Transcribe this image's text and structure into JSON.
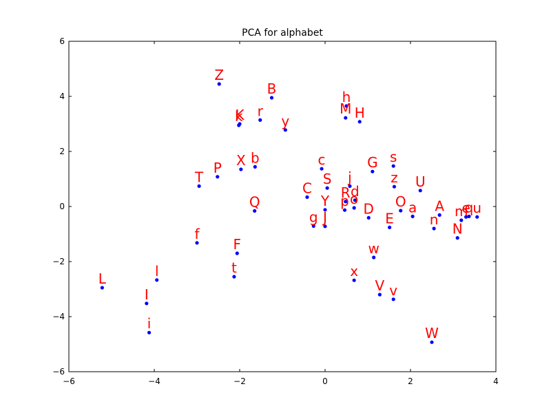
{
  "chart_data": {
    "type": "scatter",
    "title": "PCA for alphabet",
    "xlabel": "",
    "ylabel": "",
    "xlim": [
      -6,
      4
    ],
    "ylim": [
      -6,
      6
    ],
    "xticks": [
      -6,
      -4,
      -2,
      0,
      2,
      4
    ],
    "yticks": [
      -6,
      -4,
      -2,
      0,
      2,
      4,
      6
    ],
    "xtick_labels": [
      "−6",
      "−4",
      "−2",
      "0",
      "2",
      "4"
    ],
    "ytick_labels": [
      "−6",
      "−4",
      "−2",
      "0",
      "2",
      "4",
      "6"
    ],
    "grid": false,
    "point_color": "#0000ff",
    "label_color": "#ff0000",
    "points": [
      {
        "label": "Z",
        "x": -2.48,
        "y": 4.45
      },
      {
        "label": "B",
        "x": -1.25,
        "y": 3.95
      },
      {
        "label": "h",
        "x": 0.5,
        "y": 3.65
      },
      {
        "label": "M",
        "x": 0.48,
        "y": 3.22
      },
      {
        "label": "H",
        "x": 0.81,
        "y": 3.08
      },
      {
        "label": "r",
        "x": -1.52,
        "y": 3.14
      },
      {
        "label": "k",
        "x": -2.02,
        "y": 2.95
      },
      {
        "label": "K",
        "x": -2.0,
        "y": 3.0
      },
      {
        "label": "y",
        "x": -0.93,
        "y": 2.78
      },
      {
        "label": "c",
        "x": -0.08,
        "y": 1.37
      },
      {
        "label": "s",
        "x": 1.6,
        "y": 1.47
      },
      {
        "label": "G",
        "x": 1.11,
        "y": 1.27
      },
      {
        "label": "X",
        "x": -1.97,
        "y": 1.35
      },
      {
        "label": "b",
        "x": -1.64,
        "y": 1.44
      },
      {
        "label": "P",
        "x": -2.52,
        "y": 1.08
      },
      {
        "label": "T",
        "x": -2.95,
        "y": 0.74
      },
      {
        "label": "z",
        "x": 1.62,
        "y": 0.72
      },
      {
        "label": "j",
        "x": 0.58,
        "y": 0.74
      },
      {
        "label": "S",
        "x": 0.05,
        "y": 0.67
      },
      {
        "label": "U",
        "x": 2.23,
        "y": 0.58
      },
      {
        "label": "C",
        "x": -0.42,
        "y": 0.34
      },
      {
        "label": "R",
        "x": 0.48,
        "y": 0.18
      },
      {
        "label": "d",
        "x": 0.7,
        "y": 0.23
      },
      {
        "label": "Y",
        "x": 0.0,
        "y": -0.12
      },
      {
        "label": "p",
        "x": 0.46,
        "y": -0.13
      },
      {
        "label": "o",
        "x": 0.68,
        "y": -0.05
      },
      {
        "label": "O",
        "x": 1.77,
        "y": -0.15
      },
      {
        "label": "a",
        "x": 2.05,
        "y": -0.36
      },
      {
        "label": "D",
        "x": 1.02,
        "y": -0.41
      },
      {
        "label": "A",
        "x": 2.68,
        "y": -0.31
      },
      {
        "label": "Q",
        "x": -1.65,
        "y": -0.16
      },
      {
        "label": "g",
        "x": -0.27,
        "y": -0.71
      },
      {
        "label": "J",
        "x": 0.0,
        "y": -0.72
      },
      {
        "label": "E",
        "x": 1.51,
        "y": -0.76
      },
      {
        "label": "n",
        "x": 2.55,
        "y": -0.8
      },
      {
        "label": "m",
        "x": 3.19,
        "y": -0.5
      },
      {
        "label": "e",
        "x": 3.3,
        "y": -0.38
      },
      {
        "label": "q",
        "x": 3.37,
        "y": -0.36
      },
      {
        "label": "u",
        "x": 3.56,
        "y": -0.38
      },
      {
        "label": "N",
        "x": 3.1,
        "y": -1.14
      },
      {
        "label": "f",
        "x": -3.0,
        "y": -1.32
      },
      {
        "label": "F",
        "x": -2.06,
        "y": -1.7
      },
      {
        "label": "w",
        "x": 1.14,
        "y": -1.85
      },
      {
        "label": "t",
        "x": -2.13,
        "y": -2.55
      },
      {
        "label": "l",
        "x": -3.94,
        "y": -2.67
      },
      {
        "label": "L",
        "x": -5.22,
        "y": -2.95
      },
      {
        "label": "x",
        "x": 0.68,
        "y": -2.68
      },
      {
        "label": "V",
        "x": 1.28,
        "y": -3.2
      },
      {
        "label": "v",
        "x": 1.6,
        "y": -3.37
      },
      {
        "label": "I",
        "x": -4.18,
        "y": -3.52
      },
      {
        "label": "i",
        "x": -4.12,
        "y": -4.58
      },
      {
        "label": "W",
        "x": 2.5,
        "y": -4.93
      }
    ]
  }
}
